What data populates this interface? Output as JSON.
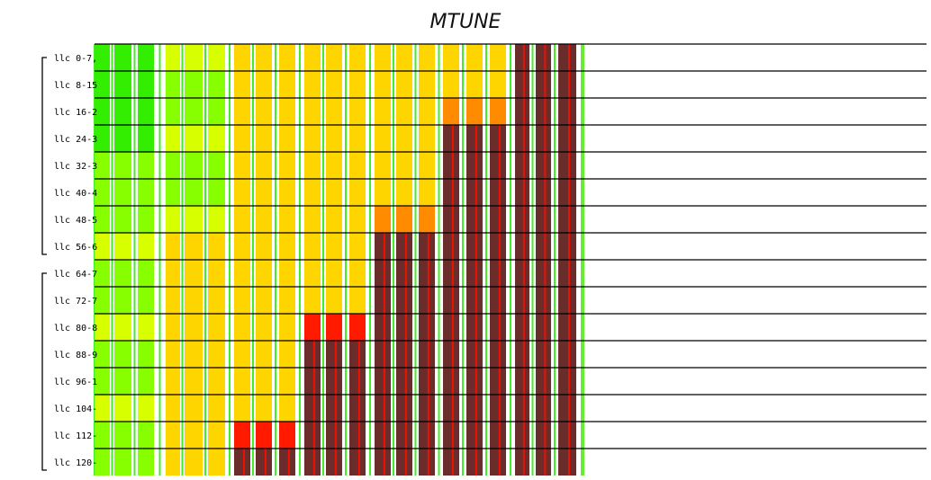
{
  "chart_data": {
    "type": "heatmap",
    "title": "MTUNE",
    "row_labels": [
      "llc 0-7,",
      "llc 8-15",
      "llc 16-2",
      "llc 24-3",
      "llc 32-3",
      "llc 40-4",
      "llc 48-5",
      "llc 56-6",
      "llc 64-7",
      "llc 72-7",
      "llc 80-8",
      "llc 88-9",
      "llc 96-1",
      "llc 104-",
      "llc 112-",
      "llc 120-"
    ],
    "row_groups": [
      [
        0,
        7
      ],
      [
        8,
        15
      ]
    ],
    "level_colors": [
      "#33ee00",
      "#88ff00",
      "#d8ff00",
      "#ffd500",
      "#ff8c00",
      "#ff1a00",
      "#6b2c2c"
    ],
    "columns": [
      [
        0,
        0,
        0,
        0,
        1,
        1,
        1,
        2,
        1,
        1,
        2,
        1,
        1,
        2,
        1,
        1
      ],
      [
        0,
        0,
        0,
        0,
        1,
        1,
        1,
        2,
        1,
        1,
        2,
        1,
        1,
        2,
        1,
        1
      ],
      [
        0,
        0,
        0,
        0,
        1,
        1,
        1,
        2,
        1,
        1,
        2,
        1,
        1,
        2,
        1,
        1
      ],
      [
        2,
        1,
        1,
        2,
        1,
        1,
        2,
        3,
        3,
        3,
        3,
        3,
        3,
        3,
        3,
        3
      ],
      [
        2,
        1,
        1,
        2,
        1,
        1,
        2,
        3,
        3,
        3,
        3,
        3,
        3,
        3,
        3,
        3
      ],
      [
        2,
        1,
        1,
        2,
        1,
        1,
        2,
        3,
        3,
        3,
        3,
        3,
        3,
        3,
        3,
        3
      ],
      [
        3,
        3,
        3,
        3,
        3,
        3,
        3,
        3,
        3,
        3,
        3,
        3,
        3,
        3,
        5,
        6
      ],
      [
        3,
        3,
        3,
        3,
        3,
        3,
        3,
        3,
        3,
        3,
        3,
        3,
        3,
        3,
        5,
        6
      ],
      [
        3,
        3,
        3,
        3,
        3,
        3,
        3,
        3,
        3,
        3,
        3,
        3,
        3,
        3,
        5,
        6
      ],
      [
        3,
        3,
        3,
        3,
        3,
        3,
        3,
        3,
        3,
        3,
        5,
        6,
        6,
        6,
        6,
        6
      ],
      [
        3,
        3,
        3,
        3,
        3,
        3,
        3,
        3,
        3,
        3,
        5,
        6,
        6,
        6,
        6,
        6
      ],
      [
        3,
        3,
        3,
        3,
        3,
        3,
        3,
        3,
        3,
        3,
        5,
        6,
        6,
        6,
        6,
        6
      ],
      [
        3,
        3,
        3,
        3,
        3,
        3,
        4,
        6,
        6,
        6,
        6,
        6,
        6,
        6,
        6,
        6
      ],
      [
        3,
        3,
        3,
        3,
        3,
        3,
        4,
        6,
        6,
        6,
        6,
        6,
        6,
        6,
        6,
        6
      ],
      [
        3,
        3,
        3,
        3,
        3,
        3,
        4,
        6,
        6,
        6,
        6,
        6,
        6,
        6,
        6,
        6
      ],
      [
        3,
        3,
        4,
        6,
        6,
        6,
        6,
        6,
        6,
        6,
        6,
        6,
        6,
        6,
        6,
        6
      ],
      [
        3,
        3,
        4,
        6,
        6,
        6,
        6,
        6,
        6,
        6,
        6,
        6,
        6,
        6,
        6,
        6
      ],
      [
        3,
        3,
        4,
        6,
        6,
        6,
        6,
        6,
        6,
        6,
        6,
        6,
        6,
        6,
        6,
        6
      ],
      [
        6,
        6,
        6,
        6,
        6,
        6,
        6,
        6,
        6,
        6,
        6,
        6,
        6,
        6,
        6,
        6
      ],
      [
        6,
        6,
        6,
        6,
        6,
        6,
        6,
        6,
        6,
        6,
        6,
        6,
        6,
        6,
        6,
        6
      ],
      [
        6,
        6,
        6,
        6,
        6,
        6,
        6,
        6,
        6,
        6,
        6,
        6,
        6,
        6,
        6,
        6
      ]
    ],
    "grid": true
  }
}
